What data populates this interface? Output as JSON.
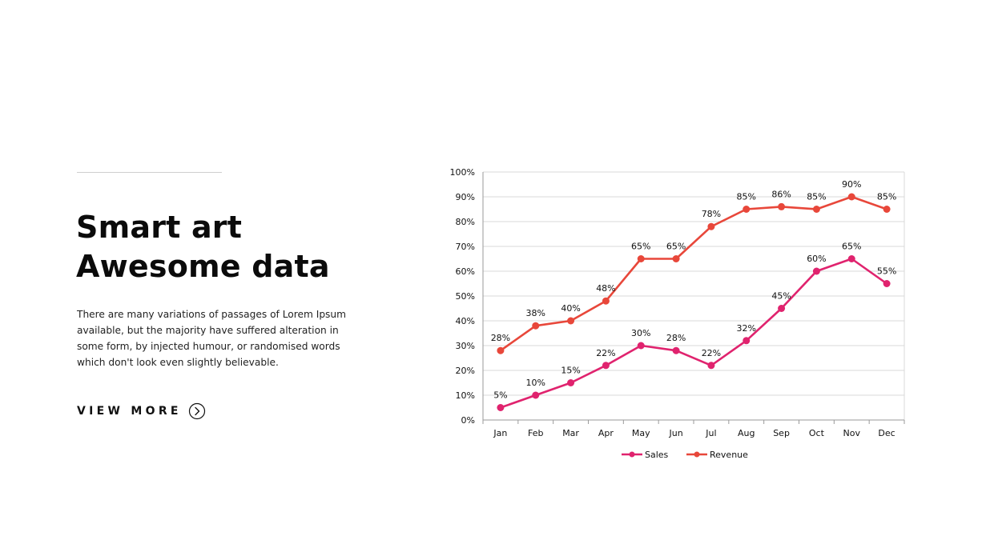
{
  "left_panel": {
    "title_line1": "Smart art",
    "title_line2": "Awesome data",
    "body": "There are many variations of passages of Lorem Ipsum available, but the majority have suffered alteration in some form, by injected humour, or randomised words which don't look even slightly believable.",
    "view_more_label": "VIEW MORE",
    "view_more_icon": "chevron-right-circle-icon"
  },
  "chart_data": {
    "type": "line",
    "categories": [
      "Jan",
      "Feb",
      "Mar",
      "Apr",
      "May",
      "Jun",
      "Jul",
      "Aug",
      "Sep",
      "Oct",
      "Nov",
      "Dec"
    ],
    "series": [
      {
        "name": "Sales",
        "color": "#e0236e",
        "values": [
          5,
          10,
          15,
          22,
          30,
          28,
          22,
          32,
          45,
          60,
          65,
          55
        ],
        "labels": [
          "5%",
          "10%",
          "15%",
          "22%",
          "30%",
          "28%",
          "22%",
          "32%",
          "45%",
          "60%",
          "65%",
          "55%"
        ]
      },
      {
        "name": "Revenue",
        "color": "#e8473a",
        "values": [
          28,
          38,
          40,
          48,
          65,
          65,
          78,
          85,
          86,
          85,
          90,
          85
        ],
        "labels": [
          "28%",
          "38%",
          "40%",
          "48%",
          "65%",
          "65%",
          "78%",
          "85%",
          "86%",
          "85%",
          "90%",
          "85%"
        ]
      }
    ],
    "y_ticks": [
      "0%",
      "10%",
      "20%",
      "30%",
      "40%",
      "50%",
      "60%",
      "70%",
      "80%",
      "90%",
      "100%"
    ],
    "ylim": [
      0,
      100
    ],
    "grid": true,
    "legend": "bottom-center",
    "title": "",
    "xlabel": "",
    "ylabel": ""
  }
}
